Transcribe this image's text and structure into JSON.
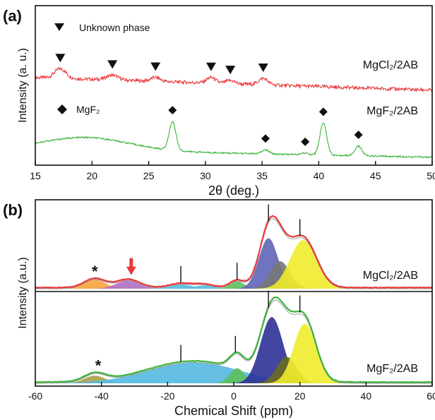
{
  "chart_data": [
    {
      "panel_label": "(a)",
      "type": "line",
      "xlabel": "2θ (deg.)",
      "ylabel": "Intensity (a. u.)",
      "xlim": [
        15,
        50
      ],
      "x_ticks": [
        15,
        20,
        25,
        30,
        35,
        40,
        45,
        50
      ],
      "legend": [
        {
          "symbol": "triangle",
          "label": "Unknown phase"
        },
        {
          "symbol": "diamond",
          "label": "MgF2"
        }
      ],
      "series": [
        {
          "name": "MgCl2/2AB",
          "color": "#e8393a",
          "baseline": 0.55,
          "slope": -0.08,
          "bumps": [
            [
              17.2,
              0.06,
              0.5
            ],
            [
              21.8,
              0.03,
              0.5
            ],
            [
              25.6,
              0.025,
              0.4
            ],
            [
              30.5,
              0.035,
              0.4
            ],
            [
              32.2,
              0.02,
              0.4
            ],
            [
              35.1,
              0.04,
              0.4
            ]
          ],
          "markers": [
            17.2,
            21.8,
            25.6,
            30.5,
            32.2,
            35.1
          ],
          "marker_type": "triangle"
        },
        {
          "name": "MgF2/2AB",
          "color": "#3cb43c",
          "baseline": 0.1,
          "slope": -0.05,
          "bumps": [
            [
              19.5,
              0.08,
              3.8
            ],
            [
              27.1,
              0.18,
              0.3
            ],
            [
              35.3,
              0.025,
              0.3
            ],
            [
              38.8,
              0.01,
              0.3
            ],
            [
              40.4,
              0.2,
              0.3
            ],
            [
              43.5,
              0.06,
              0.3
            ]
          ],
          "markers": [
            27.1,
            35.3,
            38.8,
            40.4,
            43.5
          ],
          "marker_type": "diamond"
        }
      ]
    },
    {
      "panel_label": "(b)",
      "type": "area",
      "xlabel": "Chemical Shift (ppm)",
      "ylabel": "Intensity (a.u.)",
      "xlim": [
        -60,
        60
      ],
      "x_ticks": [
        -60,
        -40,
        -20,
        0,
        20,
        40,
        60
      ],
      "series": [
        {
          "name": "MgCl2/2AB",
          "line_color": "#e8393a",
          "components": [
            {
              "center": -42,
              "width": 3.2,
              "height": 0.1,
              "color": "#f6a33c"
            },
            {
              "center": -32,
              "width": 3.5,
              "height": 0.09,
              "color": "#b06fc2"
            },
            {
              "center": -16,
              "width": 3.5,
              "height": 0.045,
              "color": "#54b9e0"
            },
            {
              "center": -9,
              "width": 3.0,
              "height": 0.035,
              "color": "#54b9e0"
            },
            {
              "center": 1,
              "width": 2.2,
              "height": 0.08,
              "color": "#5dbf5d"
            },
            {
              "center": 10.5,
              "width": 2.9,
              "height": 0.55,
              "color": "#6065b8"
            },
            {
              "center": 14,
              "width": 3.0,
              "height": 0.3,
              "color": "#777777"
            },
            {
              "center": 21,
              "width": 4.0,
              "height": 0.53,
              "color": "#f0ec2c"
            }
          ],
          "annotations": [
            {
              "type": "asterisk",
              "x": -42
            },
            {
              "type": "arrow",
              "x": -31
            }
          ],
          "ticks": [
            -16,
            1,
            10.5,
            20
          ]
        },
        {
          "name": "MgF2/2AB",
          "line_color": "#3cb43c",
          "components": [
            {
              "center": -42,
              "width": 3.2,
              "height": 0.08,
              "color": "#a7a04a"
            },
            {
              "center": -12,
              "width": 14,
              "height": 0.22,
              "color": "#54b9e0"
            },
            {
              "center": 1,
              "width": 2.2,
              "height": 0.16,
              "color": "#5dbf5d"
            },
            {
              "center": 11.5,
              "width": 3.4,
              "height": 0.7,
              "color": "#2d3296"
            },
            {
              "center": 16,
              "width": 3.0,
              "height": 0.28,
              "color": "#6b6b20"
            },
            {
              "center": 21.5,
              "width": 3.4,
              "height": 0.63,
              "color": "#f0ec2c"
            }
          ],
          "annotations": [
            {
              "type": "asterisk",
              "x": -41
            }
          ],
          "ticks": [
            -16,
            0.5,
            10.5,
            20
          ]
        }
      ]
    }
  ]
}
